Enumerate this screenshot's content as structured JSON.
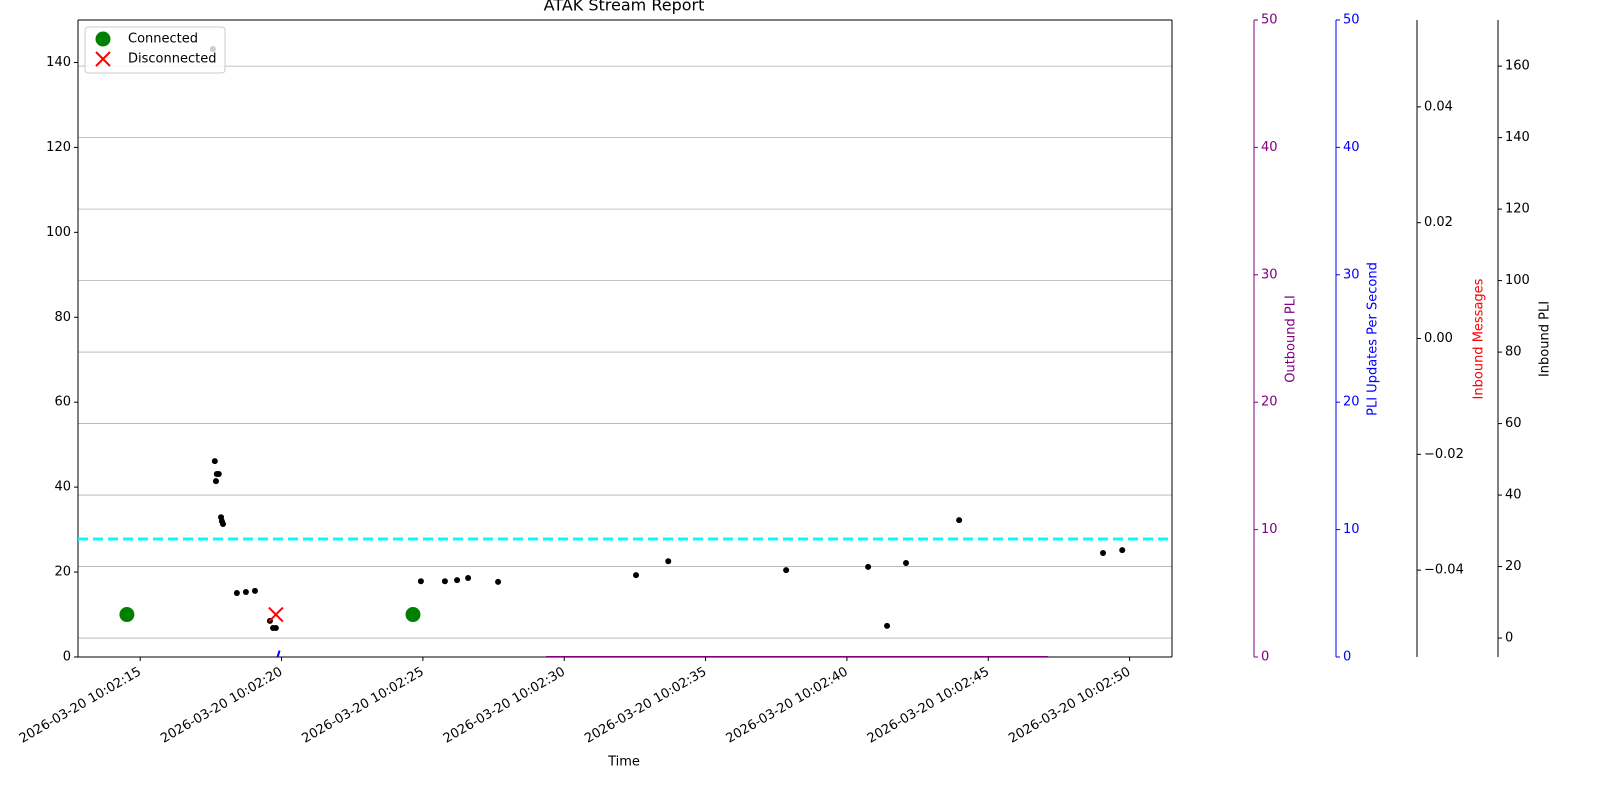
{
  "chart_data": {
    "type": "scatter",
    "title": "ATAK Stream Report",
    "xlabel": "Time",
    "xlim": [
      "2026-03-20 10:02:12.8",
      "2026-03-20 10:02:51.5"
    ],
    "xticks": [
      "2026-03-20 10:02:15",
      "2026-03-20 10:02:20",
      "2026-03-20 10:02:25",
      "2026-03-20 10:02:30",
      "2026-03-20 10:02:35",
      "2026-03-20 10:02:40",
      "2026-03-20 10:02:45",
      "2026-03-20 10:02:50"
    ],
    "grid": true,
    "grid_axis": "y5",
    "legend": "upper left",
    "y_axes": [
      {
        "id": "y",
        "ylim": [
          0,
          150
        ],
        "yticks": [
          0,
          20,
          40,
          60,
          80,
          100,
          120,
          140
        ]
      },
      {
        "id": "y2",
        "label": "Outbound PLI",
        "color": "#800080",
        "ylim": [
          0,
          50
        ],
        "yticks": [
          0,
          10,
          20,
          30,
          40,
          50
        ]
      },
      {
        "id": "y3",
        "label": "PLI Updates Per Second",
        "color": "#0000ff",
        "ylim": [
          0,
          50
        ],
        "yticks": [
          0,
          10,
          20,
          30,
          40,
          50
        ]
      },
      {
        "id": "y4",
        "label": "Inbound Messages",
        "label_color": "#ff0000",
        "ylim": [
          -0.055,
          0.055
        ],
        "yticks": [
          {
            "value": -0.04,
            "label": "−0.04"
          },
          {
            "value": -0.02,
            "label": "−0.02"
          },
          {
            "value": 0,
            "label": "0.00"
          },
          0.02,
          0.04
        ]
      },
      {
        "id": "y5",
        "label": "Inbound PLI",
        "label_color": "#000000",
        "ylim": [
          -5.3,
          172.9
        ],
        "yticks": [
          0,
          20,
          40,
          60,
          80,
          100,
          120,
          140,
          160
        ]
      }
    ],
    "series": [
      {
        "type": "hline",
        "axis": "y",
        "color": "#00ffff",
        "linestyle": "dashed",
        "values": [
          27.8
        ]
      },
      {
        "type": "line",
        "axis": "y2",
        "color": "#800080",
        "x": [
          "2026-03-20 10:02:29.36",
          "2026-03-20 10:02:47.12"
        ],
        "values": [
          0,
          0
        ]
      },
      {
        "type": "line",
        "axis": "y3",
        "color": "#0000ff",
        "x": [
          "2026-03-20 10:02:19.86",
          "2026-03-20 10:02:19.93"
        ],
        "values": [
          0,
          0.5
        ]
      },
      {
        "type": "scatter",
        "axis": "y5",
        "color": "#000000",
        "marker": "dot",
        "x": [
          "2026-03-20 10:02:17.57",
          "2026-03-20 10:02:17.64",
          "2026-03-20 10:02:17.71",
          "2026-03-20 10:02:17.68",
          "2026-03-20 10:02:17.78",
          "2026-03-20 10:02:17.86",
          "2026-03-20 10:02:17.89",
          "2026-03-20 10:02:17.93",
          "2026-03-20 10:02:18.42",
          "2026-03-20 10:02:18.74",
          "2026-03-20 10:02:19.06",
          "2026-03-20 10:02:19.59",
          "2026-03-20 10:02:19.7",
          "2026-03-20 10:02:19.8",
          "2026-03-20 10:02:24.93",
          "2026-03-20 10:02:25.78",
          "2026-03-20 10:02:26.21",
          "2026-03-20 10:02:26.6",
          "2026-03-20 10:02:27.66",
          "2026-03-20 10:02:32.54",
          "2026-03-20 10:02:33.68",
          "2026-03-20 10:02:37.85",
          "2026-03-20 10:02:40.75",
          "2026-03-20 10:02:41.42",
          "2026-03-20 10:02:42.09",
          "2026-03-20 10:02:43.97",
          "2026-03-20 10:02:49.06",
          "2026-03-20 10:02:49.74"
        ],
        "values": [
          164.8,
          49.5,
          45.9,
          43.9,
          45.9,
          33.8,
          32.7,
          31.9,
          12.6,
          12.9,
          13.2,
          4.8,
          2.8,
          2.8,
          15.9,
          15.9,
          16.2,
          16.8,
          15.7,
          17.6,
          21.5,
          19.0,
          19.9,
          3.4,
          21.0,
          33.0,
          23.8,
          24.6
        ]
      },
      {
        "type": "scatter",
        "name": "Connected",
        "axis": "y",
        "color": "#008000",
        "marker": "circle",
        "x": [
          "2026-03-20 10:02:14.53",
          "2026-03-20 10:02:24.65"
        ],
        "values": [
          10,
          10
        ]
      },
      {
        "type": "scatter",
        "name": "Disconnected",
        "axis": "y",
        "color": "#ff0000",
        "marker": "x",
        "x": [
          "2026-03-20 10:02:19.8"
        ],
        "values": [
          10
        ]
      }
    ]
  }
}
